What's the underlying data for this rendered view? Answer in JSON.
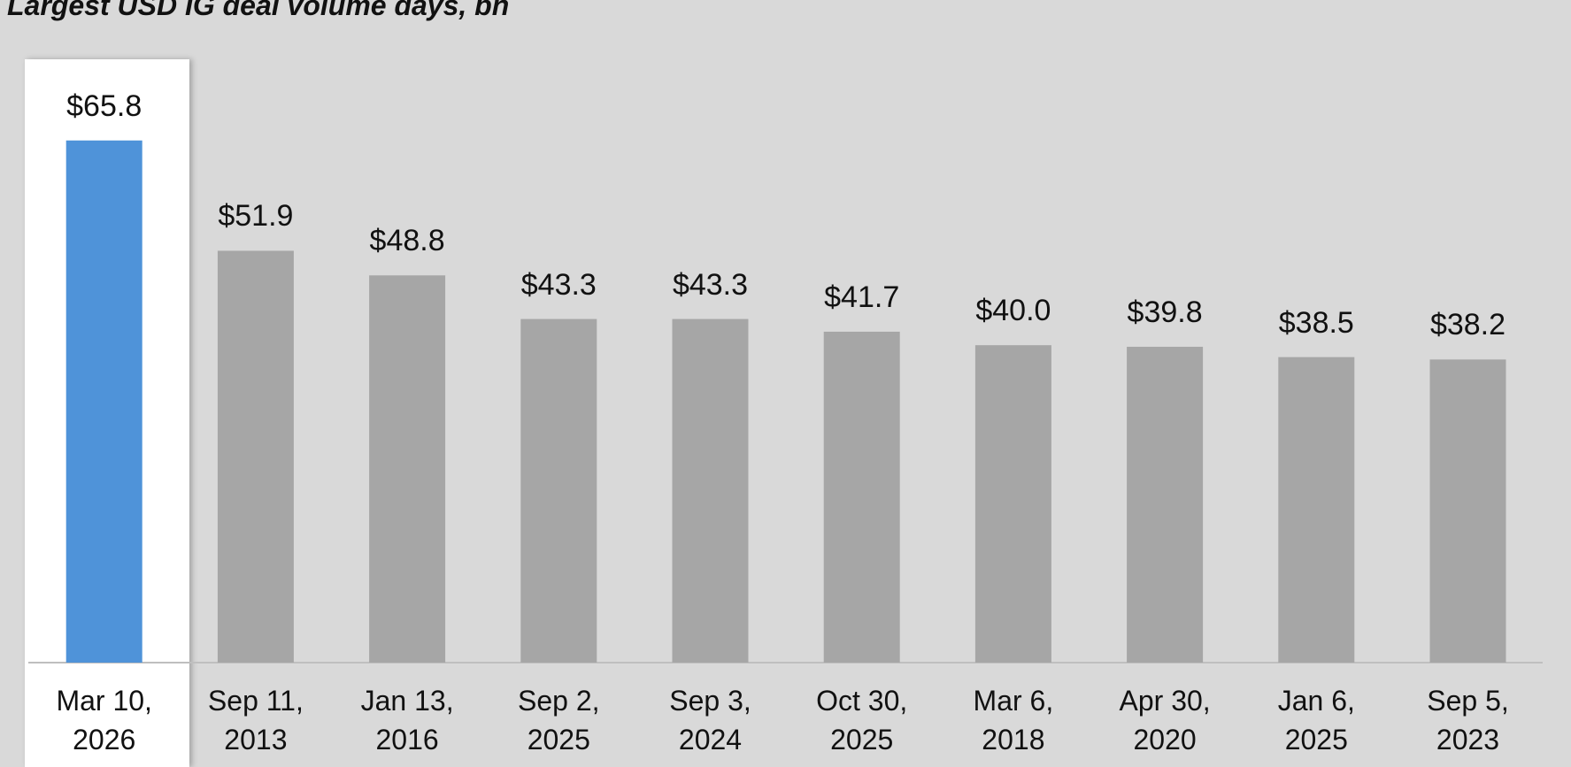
{
  "chart_data": {
    "type": "bar",
    "title": "Largest USD IG deal volume days, bn",
    "categories": [
      "Mar 10, 2026",
      "Sep 11, 2013",
      "Jan 13, 2016",
      "Sep 2, 2025",
      "Sep 3, 2024",
      "Oct 30, 2025",
      "Mar 6, 2018",
      "Apr 30, 2020",
      "Jan 6, 2025",
      "Sep 5, 2023"
    ],
    "values": [
      65.8,
      51.9,
      48.8,
      43.3,
      43.3,
      41.7,
      40.0,
      39.8,
      38.5,
      38.2
    ],
    "value_labels": [
      "$65.8",
      "$51.9",
      "$48.8",
      "$43.3",
      "$43.3",
      "$41.7",
      "$40.0",
      "$39.8",
      "$38.5",
      "$38.2"
    ],
    "colors": [
      "#4f93d9",
      "#a6a6a6",
      "#a6a6a6",
      "#a6a6a6",
      "#a6a6a6",
      "#a6a6a6",
      "#a6a6a6",
      "#a6a6a6",
      "#a6a6a6",
      "#a6a6a6"
    ],
    "highlight": 0,
    "ylim": [
      0,
      80
    ]
  }
}
